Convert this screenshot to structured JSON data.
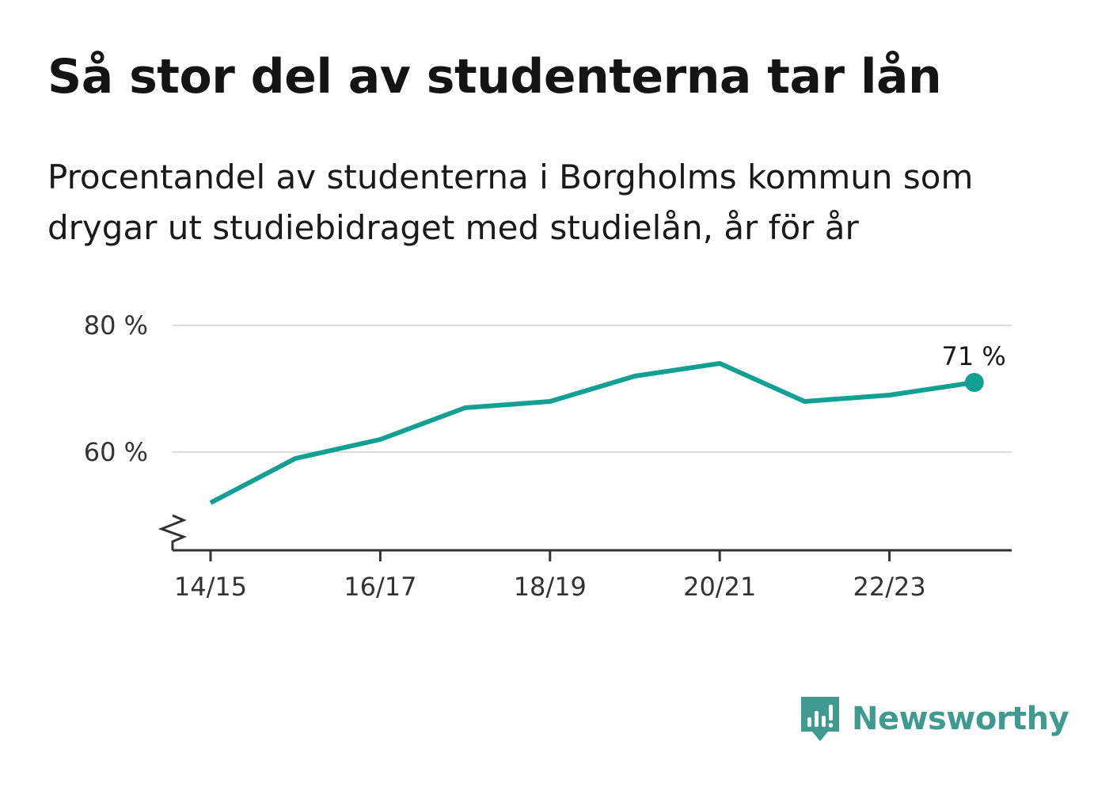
{
  "header": {
    "title": "Så stor del av studenterna tar lån",
    "subtitle": "Procentandel av studenterna i Borgholms kommun som drygar ut studiebidraget med studielån, år för år"
  },
  "brand": {
    "name": "Newsworthy",
    "icon": "newsworthy-logo-icon",
    "color": "#3f9b8f"
  },
  "chart_data": {
    "type": "line",
    "x": [
      "14/15",
      "15/16",
      "16/17",
      "17/18",
      "18/19",
      "19/20",
      "20/21",
      "21/22",
      "22/23",
      "23/24"
    ],
    "series": [
      {
        "values": [
          52,
          59,
          62,
          67,
          68,
          72,
          74,
          68,
          69,
          71
        ],
        "color": "#12a092"
      }
    ],
    "x_tick_labels": [
      "14/15",
      "16/17",
      "18/19",
      "20/21",
      "22/23"
    ],
    "y_ticks": [
      60,
      80
    ],
    "y_tick_labels": [
      "60 %",
      "80 %"
    ],
    "ylim": [
      44,
      80
    ],
    "axis_break": true,
    "grid": true,
    "end_label": "71 %",
    "title": "Så stor del av studenterna tar lån",
    "xlabel": "",
    "ylabel": ""
  }
}
